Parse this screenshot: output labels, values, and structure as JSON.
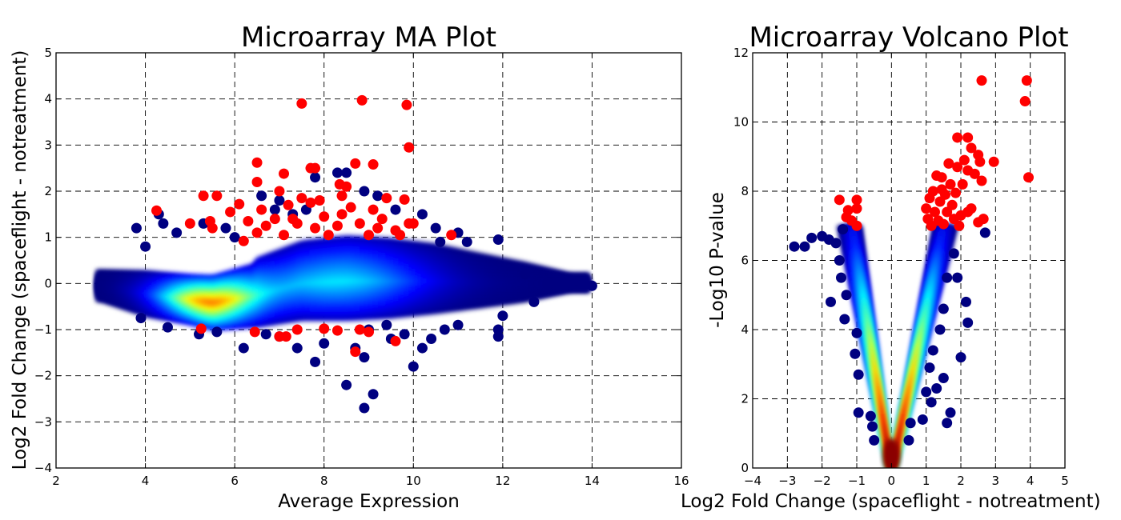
{
  "chart_data": [
    {
      "type": "scatter",
      "title": "Microarray MA Plot",
      "xlabel": "Average Expression",
      "ylabel": "Log2 Fold Change (spaceflight - notreatment)",
      "xlim": [
        2,
        16
      ],
      "ylim": [
        -4,
        5
      ],
      "xticks": [
        2,
        4,
        6,
        8,
        10,
        12,
        14,
        16
      ],
      "yticks": [
        -4,
        -3,
        -2,
        -1,
        0,
        1,
        2,
        3,
        4,
        5
      ],
      "grid": true,
      "colormap": "jet",
      "point_color_outlier": "#000080",
      "point_color_significant": "#ff0000",
      "density_ridges": [
        {
          "x": 3.0,
          "y": -0.05,
          "spread": 0.35
        },
        {
          "x": 4.0,
          "y": -0.22,
          "spread": 0.5
        },
        {
          "x": 5.0,
          "y": -0.35,
          "spread": 0.55
        },
        {
          "x": 5.5,
          "y": -0.42,
          "spread": 0.6
        },
        {
          "x": 6.5,
          "y": -0.25,
          "spread": 0.7
        },
        {
          "x": 7.5,
          "y": 0.0,
          "spread": 0.8
        },
        {
          "x": 8.5,
          "y": 0.05,
          "spread": 0.85
        },
        {
          "x": 9.5,
          "y": 0.05,
          "spread": 0.8
        },
        {
          "x": 10.5,
          "y": 0.05,
          "spread": 0.7
        },
        {
          "x": 11.5,
          "y": 0.02,
          "spread": 0.55
        },
        {
          "x": 12.5,
          "y": 0.0,
          "spread": 0.4
        },
        {
          "x": 13.5,
          "y": 0.0,
          "spread": 0.2
        }
      ],
      "outliers": [
        [
          3.8,
          1.2
        ],
        [
          4.0,
          0.8
        ],
        [
          4.3,
          1.5
        ],
        [
          4.4,
          1.3
        ],
        [
          4.7,
          1.1
        ],
        [
          5.3,
          1.3
        ],
        [
          5.8,
          1.2
        ],
        [
          6.6,
          1.9
        ],
        [
          6.9,
          1.6
        ],
        [
          7.0,
          1.8
        ],
        [
          7.3,
          1.5
        ],
        [
          7.6,
          1.6
        ],
        [
          7.8,
          2.3
        ],
        [
          8.3,
          2.4
        ],
        [
          8.5,
          2.4
        ],
        [
          8.9,
          2.0
        ],
        [
          9.2,
          1.9
        ],
        [
          9.6,
          1.6
        ],
        [
          10.2,
          1.5
        ],
        [
          10.5,
          1.2
        ],
        [
          11.0,
          1.1
        ],
        [
          11.2,
          0.9
        ],
        [
          11.9,
          0.95
        ],
        [
          12.5,
          0.2
        ],
        [
          13.0,
          0.0
        ],
        [
          13.8,
          0.0
        ],
        [
          14.0,
          -0.05
        ],
        [
          12.7,
          -0.4
        ],
        [
          12.0,
          -0.7
        ],
        [
          11.9,
          -1.0
        ],
        [
          11.9,
          -1.15
        ],
        [
          11.0,
          -0.9
        ],
        [
          10.7,
          -1.0
        ],
        [
          10.4,
          -1.2
        ],
        [
          10.2,
          -1.4
        ],
        [
          10.0,
          -1.8
        ],
        [
          9.8,
          -1.1
        ],
        [
          9.5,
          -1.2
        ],
        [
          9.0,
          -1.0
        ],
        [
          8.9,
          -1.6
        ],
        [
          8.9,
          -2.7
        ],
        [
          9.1,
          -2.4
        ],
        [
          8.5,
          -2.2
        ],
        [
          8.7,
          -1.4
        ],
        [
          8.0,
          -1.3
        ],
        [
          7.8,
          -1.7
        ],
        [
          7.4,
          -1.4
        ],
        [
          7.0,
          -1.15
        ],
        [
          6.7,
          -1.1
        ],
        [
          6.2,
          -1.4
        ],
        [
          5.6,
          -1.05
        ],
        [
          5.2,
          -1.1
        ],
        [
          4.5,
          -0.95
        ],
        [
          3.9,
          -0.75
        ],
        [
          9.4,
          -0.9
        ],
        [
          10.6,
          0.9
        ],
        [
          6.0,
          1.0
        ]
      ],
      "significant": [
        [
          7.5,
          3.9
        ],
        [
          8.85,
          3.97
        ],
        [
          9.85,
          3.87
        ],
        [
          9.9,
          2.95
        ],
        [
          6.5,
          2.62
        ],
        [
          7.7,
          2.5
        ],
        [
          7.8,
          2.5
        ],
        [
          8.7,
          2.6
        ],
        [
          9.1,
          2.58
        ],
        [
          6.5,
          2.2
        ],
        [
          7.1,
          2.38
        ],
        [
          8.35,
          2.15
        ],
        [
          8.5,
          2.1
        ],
        [
          5.3,
          1.9
        ],
        [
          5.6,
          1.9
        ],
        [
          7.0,
          2.0
        ],
        [
          7.5,
          1.85
        ],
        [
          7.9,
          1.8
        ],
        [
          8.4,
          1.9
        ],
        [
          9.4,
          1.85
        ],
        [
          9.8,
          1.82
        ],
        [
          6.1,
          1.72
        ],
        [
          6.6,
          1.6
        ],
        [
          7.2,
          1.7
        ],
        [
          7.7,
          1.75
        ],
        [
          8.6,
          1.65
        ],
        [
          9.1,
          1.6
        ],
        [
          4.25,
          1.58
        ],
        [
          5.9,
          1.55
        ],
        [
          6.9,
          1.4
        ],
        [
          7.4,
          1.3
        ],
        [
          8.0,
          1.45
        ],
        [
          8.8,
          1.3
        ],
        [
          9.3,
          1.4
        ],
        [
          9.9,
          1.3
        ],
        [
          5.0,
          1.3
        ],
        [
          5.45,
          1.35
        ],
        [
          6.3,
          1.35
        ],
        [
          7.8,
          1.2
        ],
        [
          8.3,
          1.25
        ],
        [
          9.6,
          1.15
        ],
        [
          10.0,
          1.3
        ],
        [
          5.5,
          1.2
        ],
        [
          6.5,
          1.1
        ],
        [
          7.1,
          1.05
        ],
        [
          8.1,
          1.05
        ],
        [
          9.0,
          1.05
        ],
        [
          9.7,
          1.05
        ],
        [
          10.85,
          1.05
        ],
        [
          6.2,
          0.92
        ],
        [
          7.3,
          1.4
        ],
        [
          8.4,
          1.5
        ],
        [
          6.7,
          1.25
        ],
        [
          9.2,
          1.2
        ],
        [
          5.25,
          -0.98
        ],
        [
          6.45,
          -1.05
        ],
        [
          7.0,
          -1.15
        ],
        [
          7.15,
          -1.15
        ],
        [
          7.4,
          -1.0
        ],
        [
          8.0,
          -0.98
        ],
        [
          8.3,
          -1.02
        ],
        [
          8.8,
          -1.0
        ],
        [
          9.0,
          -1.05
        ],
        [
          8.7,
          -1.48
        ],
        [
          9.6,
          -1.25
        ]
      ]
    },
    {
      "type": "scatter",
      "title": "Microarray Volcano Plot",
      "xlabel": "Log2 Fold Change (spaceflight - notreatment)",
      "ylabel": "-Log10 P-value",
      "xlim": [
        -4,
        5
      ],
      "ylim": [
        0,
        12
      ],
      "xticks": [
        -4,
        -3,
        -2,
        -1,
        0,
        1,
        2,
        3,
        4,
        5
      ],
      "yticks": [
        0,
        2,
        4,
        6,
        8,
        10,
        12
      ],
      "grid": true,
      "colormap": "jet",
      "point_color_outlier": "#000080",
      "point_color_significant": "#ff0000",
      "outliers": [
        [
          -2.8,
          6.4
        ],
        [
          -2.5,
          6.4
        ],
        [
          -2.3,
          6.65
        ],
        [
          -2.0,
          6.7
        ],
        [
          -1.8,
          6.6
        ],
        [
          -1.6,
          6.5
        ],
        [
          -1.4,
          6.9
        ],
        [
          -1.5,
          6.0
        ],
        [
          -1.45,
          5.5
        ],
        [
          -1.3,
          5.0
        ],
        [
          -1.75,
          4.8
        ],
        [
          -1.35,
          4.3
        ],
        [
          -1.0,
          3.9
        ],
        [
          -1.05,
          3.3
        ],
        [
          -0.95,
          2.7
        ],
        [
          -0.95,
          1.6
        ],
        [
          -0.6,
          1.5
        ],
        [
          -0.55,
          1.2
        ],
        [
          -0.5,
          0.8
        ],
        [
          0.5,
          0.8
        ],
        [
          0.55,
          1.3
        ],
        [
          1.0,
          2.2
        ],
        [
          1.3,
          2.3
        ],
        [
          1.5,
          2.6
        ],
        [
          1.6,
          1.3
        ],
        [
          1.7,
          1.6
        ],
        [
          1.2,
          3.4
        ],
        [
          1.4,
          4.0
        ],
        [
          1.5,
          4.6
        ],
        [
          1.6,
          5.5
        ],
        [
          1.8,
          6.2
        ],
        [
          1.9,
          5.5
        ],
        [
          2.0,
          3.2
        ],
        [
          2.2,
          4.2
        ],
        [
          2.15,
          4.8
        ],
        [
          2.7,
          6.8
        ],
        [
          1.15,
          1.9
        ],
        [
          0.9,
          1.4
        ],
        [
          1.1,
          2.9
        ]
      ],
      "significant": [
        [
          2.6,
          11.2
        ],
        [
          3.9,
          11.2
        ],
        [
          3.85,
          10.6
        ],
        [
          1.9,
          9.55
        ],
        [
          2.2,
          9.55
        ],
        [
          2.3,
          9.25
        ],
        [
          2.5,
          9.05
        ],
        [
          2.95,
          8.85
        ],
        [
          2.55,
          8.85
        ],
        [
          1.65,
          8.8
        ],
        [
          1.9,
          8.7
        ],
        [
          2.2,
          8.6
        ],
        [
          3.95,
          8.4
        ],
        [
          2.4,
          8.5
        ],
        [
          1.3,
          8.45
        ],
        [
          1.45,
          8.4
        ],
        [
          2.6,
          8.3
        ],
        [
          2.05,
          8.2
        ],
        [
          1.2,
          8.0
        ],
        [
          1.55,
          7.9
        ],
        [
          1.85,
          7.95
        ],
        [
          1.1,
          7.8
        ],
        [
          1.4,
          7.7
        ],
        [
          1.75,
          7.6
        ],
        [
          2.3,
          7.5
        ],
        [
          1.0,
          7.5
        ],
        [
          1.25,
          7.4
        ],
        [
          1.6,
          7.4
        ],
        [
          2.0,
          7.3
        ],
        [
          1.05,
          7.2
        ],
        [
          1.35,
          7.15
        ],
        [
          1.8,
          7.2
        ],
        [
          2.5,
          7.1
        ],
        [
          2.65,
          7.2
        ],
        [
          1.15,
          7.0
        ],
        [
          1.5,
          7.05
        ],
        [
          1.95,
          7.0
        ],
        [
          2.2,
          7.4
        ],
        [
          -1.5,
          7.75
        ],
        [
          -1.0,
          7.75
        ],
        [
          -1.0,
          7.5
        ],
        [
          -1.25,
          7.45
        ],
        [
          -1.3,
          7.25
        ],
        [
          -1.15,
          7.15
        ],
        [
          -1.0,
          7.0
        ],
        [
          1.7,
          8.2
        ],
        [
          2.1,
          8.9
        ],
        [
          1.45,
          8.05
        ]
      ]
    }
  ]
}
